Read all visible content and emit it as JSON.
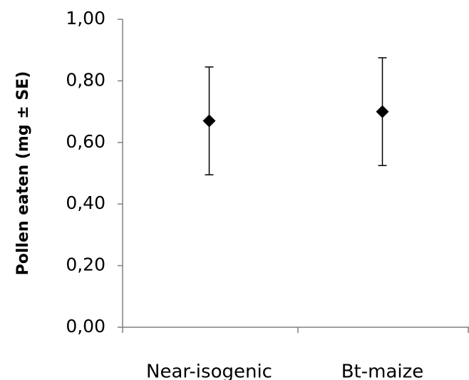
{
  "chart_data": {
    "type": "point",
    "y_label": "Pollen eaten (mg ± SE)",
    "categories": [
      "Near-isogenic",
      "Bt-maize"
    ],
    "values": [
      0.67,
      0.7
    ],
    "errors": [
      0.175,
      0.175
    ],
    "color": "#000000",
    "ylim": [
      0,
      1
    ],
    "yticks": [
      {
        "value": 0,
        "label": "0,00"
      },
      {
        "value": 0.2,
        "label": "0,20"
      },
      {
        "value": 0.4,
        "label": "0,40"
      },
      {
        "value": 0.6,
        "label": "0,60"
      },
      {
        "value": 0.8,
        "label": "0,80"
      },
      {
        "value": 1,
        "label": "1,00"
      }
    ]
  }
}
